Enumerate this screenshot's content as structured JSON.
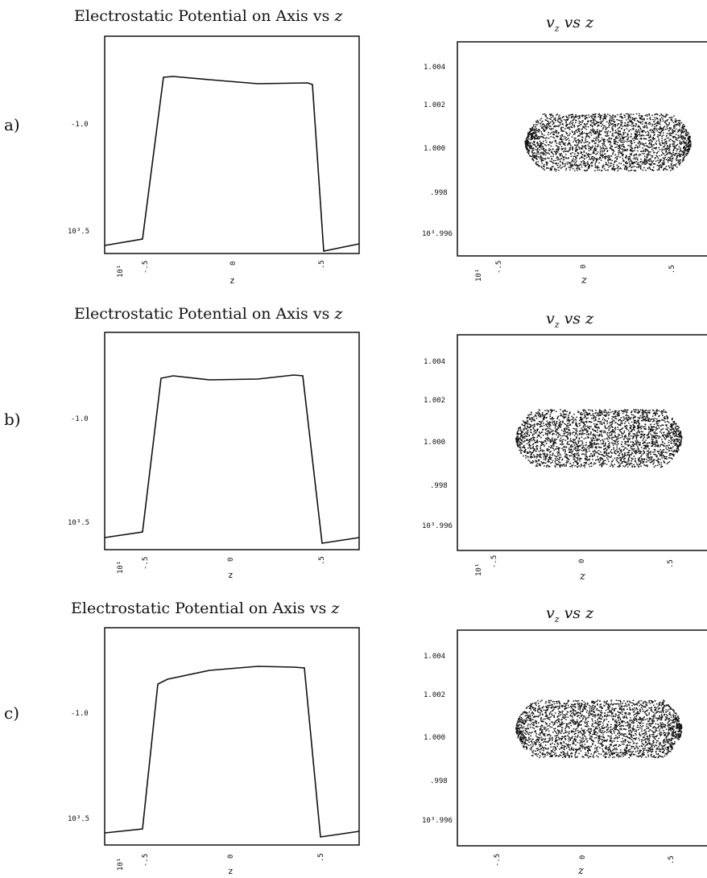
{
  "panels": [
    {
      "label": "a)",
      "potential": {
        "title_text": "Electrostatic Potential on Axis vs ",
        "title_var": "z",
        "xlabel": "z",
        "ytick_labels": [
          "-1.0",
          "10³.5"
        ],
        "xtick_labels": [
          "10¹",
          "-.5",
          "0",
          ".5"
        ]
      },
      "velocity": {
        "title_var": "v",
        "title_sub": "z",
        "title_rest": " vs ",
        "title_var2": "z",
        "xlabel": "z",
        "ytick_labels": [
          "1.004",
          "1.002",
          "1.000",
          ".998",
          "10³.996"
        ],
        "xtick_labels": [
          "10¹",
          "-.5",
          "0",
          ".5"
        ]
      }
    },
    {
      "label": "b)",
      "potential": {
        "title_text": "Electrostatic Potential on Axis vs ",
        "title_var": "z",
        "xlabel": "z",
        "ytick_labels": [
          "-1.0",
          "10³.5"
        ],
        "xtick_labels": [
          "10¹",
          "-.5",
          "0",
          ".5"
        ]
      },
      "velocity": {
        "title_var": "v",
        "title_sub": "z",
        "title_rest": " vs ",
        "title_var2": "z",
        "xlabel": "z",
        "ytick_labels": [
          "1.004",
          "1.002",
          "1.000",
          ".998",
          "10³.996"
        ],
        "xtick_labels": [
          "10¹",
          "-.5",
          "0",
          ".5"
        ]
      }
    },
    {
      "label": "c)",
      "potential": {
        "title_text": "Electrostatic Potential on Axis vs ",
        "title_var": "z",
        "xlabel": "z",
        "ytick_labels": [
          "-1.0",
          "10³.5"
        ],
        "xtick_labels": [
          "10¹",
          "-.5",
          "0",
          ".5"
        ]
      },
      "velocity": {
        "title_var": "v",
        "title_sub": "z",
        "title_rest": " vs ",
        "title_var2": "z",
        "xlabel": "z",
        "ytick_labels": [
          "1.004",
          "1.002",
          "1.000",
          ".998",
          "10³.996"
        ],
        "xtick_labels": [
          "-.5",
          "0",
          ".5"
        ]
      }
    }
  ],
  "chart_data": [
    {
      "type": "line",
      "panel": "a",
      "x": [
        -0.7,
        -0.5,
        -0.42,
        -0.3,
        0.0,
        0.3,
        0.42,
        0.5,
        0.7
      ],
      "y": [
        -1.46,
        -1.44,
        -0.78,
        -0.79,
        -0.81,
        -0.8,
        -0.82,
        -1.46,
        -1.43
      ],
      "xlim": [
        -0.7,
        0.7
      ],
      "ylim": [
        -1.5,
        -0.7
      ]
    },
    {
      "type": "scatter",
      "panel": "a",
      "cloud": {
        "x_range": [
          -0.4,
          0.5
        ],
        "y_center": 1.0003,
        "y_spread": 0.0012
      },
      "xlim": [
        -0.7,
        0.7
      ],
      "ylim": [
        0.9955,
        1.0045
      ]
    },
    {
      "type": "line",
      "panel": "b",
      "x": [
        -0.7,
        -0.5,
        -0.42,
        -0.3,
        0.0,
        0.3,
        0.42,
        0.5,
        0.7
      ],
      "y": [
        -1.46,
        -1.44,
        -0.78,
        -0.79,
        -0.8,
        -0.79,
        -0.78,
        -1.46,
        -1.43
      ],
      "xlim": [
        -0.7,
        0.7
      ],
      "ylim": [
        -1.5,
        -0.7
      ]
    },
    {
      "type": "scatter",
      "panel": "b",
      "cloud": {
        "x_range": [
          -0.45,
          0.45
        ],
        "y_center": 1.0002,
        "y_spread": 0.0012
      },
      "xlim": [
        -0.7,
        0.7
      ],
      "ylim": [
        0.9955,
        1.0045
      ]
    },
    {
      "type": "line",
      "panel": "c",
      "x": [
        -0.7,
        -0.5,
        -0.42,
        -0.3,
        0.0,
        0.3,
        0.42,
        0.5,
        0.7
      ],
      "y": [
        -1.46,
        -1.44,
        -0.85,
        -0.83,
        -0.8,
        -0.79,
        -0.79,
        -1.46,
        -1.43
      ],
      "xlim": [
        -0.7,
        0.7
      ],
      "ylim": [
        -1.5,
        -0.7
      ]
    },
    {
      "type": "scatter",
      "panel": "c",
      "cloud": {
        "x_range": [
          -0.45,
          0.45
        ],
        "y_center": 1.0004,
        "y_spread": 0.0012
      },
      "xlim": [
        -0.7,
        0.7
      ],
      "ylim": [
        0.9955,
        1.0045
      ]
    }
  ]
}
